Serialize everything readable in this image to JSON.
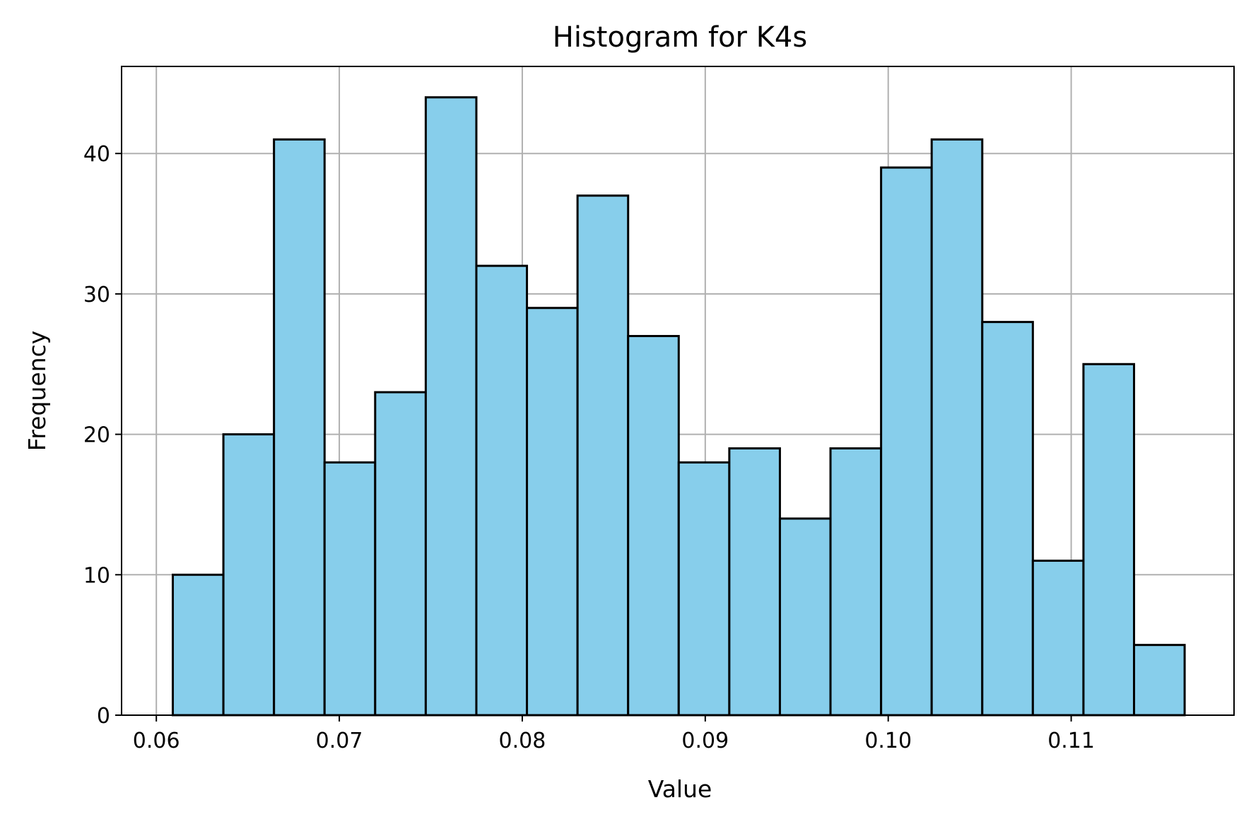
{
  "chart_data": {
    "type": "bar",
    "title": "Histogram for K4s",
    "xlabel": "Value",
    "ylabel": "Frequency",
    "xlim": [
      0.0581,
      0.1189
    ],
    "ylim": [
      0,
      46.2
    ],
    "xticks": [
      0.06,
      0.07,
      0.08,
      0.09,
      0.1,
      0.11
    ],
    "xtick_labels": [
      "0.06",
      "0.07",
      "0.08",
      "0.09",
      "0.10",
      "0.11"
    ],
    "yticks": [
      0,
      10,
      20,
      30,
      40
    ],
    "ytick_labels": [
      "0",
      "10",
      "20",
      "30",
      "40"
    ],
    "bin_start": 0.0609,
    "bin_end": 0.1162,
    "values": [
      10,
      20,
      41,
      18,
      23,
      44,
      32,
      29,
      37,
      27,
      18,
      19,
      14,
      19,
      39,
      41,
      28,
      11,
      25,
      5
    ],
    "grid": true,
    "bar_color": "#87ceeb",
    "edge_color": "#000000"
  }
}
